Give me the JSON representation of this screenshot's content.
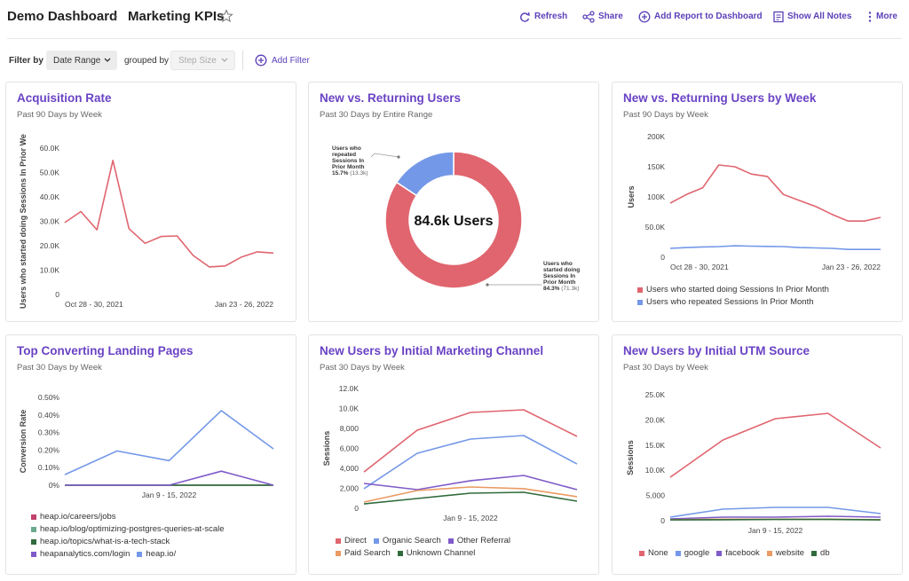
{
  "header": {
    "breadcrumb": "Demo Dashboard",
    "title": "Marketing KPIs",
    "actions": [
      "Refresh",
      "Share",
      "Add Report to Dashboard",
      "Show All Notes",
      "More"
    ]
  },
  "filters": {
    "filter_label": "Filter by",
    "filter_value": "Date Range",
    "group_label": "grouped by",
    "group_value": "Step Size",
    "add": "Add Filter"
  },
  "chart_data": [
    {
      "type": "line",
      "title": "Acquisition Rate",
      "subtitle": "Past 90 Days by Week",
      "y_label": "Users who started doing Sessions In Prior We",
      "color": "#e0656f",
      "categories": [
        "Oct 28 - 30, 2021",
        null,
        null,
        null,
        null,
        null,
        null,
        null,
        null,
        null,
        null,
        null,
        null,
        "Jan 23 - 26, 2022"
      ],
      "values": [
        29500,
        34000,
        26500,
        55000,
        27000,
        21000,
        23800,
        24000,
        16000,
        11300,
        11700,
        15300,
        17500,
        17000
      ],
      "ylim": [
        0,
        60000
      ],
      "yticks": [
        0,
        {
          "value": 10000,
          "label": "10.0K"
        },
        {
          "value": 20000,
          "label": "20.0K"
        },
        {
          "value": 30000,
          "label": "30.0K"
        },
        {
          "value": 40000,
          "label": "40.0K"
        },
        {
          "value": 50000,
          "label": "50.0K"
        },
        {
          "value": 60000,
          "label": "60.0K"
        }
      ],
      "grid": false
    },
    {
      "type": "donut",
      "title": "New vs. Returning Users",
      "subtitle": "Past 30 Days by Entire Range",
      "center_label": "84.6k Users",
      "categories": [
        "Users who started doing Sessions In Prior Month",
        "Users who repeated Sessions In Prior Month"
      ],
      "values": [
        84.3,
        15.7
      ],
      "value_labels": [
        "84.3%",
        "15.7%"
      ],
      "count_labels": [
        "(71.3k)",
        "(13.3k)"
      ],
      "colors": [
        "#e0656f",
        "#7498e8"
      ]
    },
    {
      "type": "line",
      "title": "New vs. Returning Users by Week",
      "subtitle": "Past 90 Days by Week",
      "y_label": "Users",
      "categories": [
        "Oct 28 - 30, 2021",
        null,
        null,
        null,
        null,
        null,
        null,
        null,
        null,
        null,
        null,
        null,
        null,
        "Jan 23 - 26, 2022"
      ],
      "series": [
        {
          "name": "Users who started doing Sessions In Prior Month",
          "color": "#e0656f",
          "values": [
            89700,
            104000,
            115000,
            153000,
            150000,
            138000,
            134000,
            104000,
            94000,
            84000,
            71000,
            60000,
            60000,
            66000
          ]
        },
        {
          "name": "Users who repeated Sessions In Prior Month",
          "color": "#7498e8",
          "values": [
            14700,
            16000,
            17000,
            17600,
            19000,
            18400,
            18000,
            17600,
            16000,
            15500,
            14700,
            13000,
            13000,
            13000
          ]
        }
      ],
      "ylim": [
        0,
        200000
      ],
      "yticks": [
        0,
        {
          "value": 50000,
          "label": "50.0K"
        },
        {
          "value": 100000,
          "label": "100K"
        },
        {
          "value": 150000,
          "label": "150K"
        },
        {
          "value": 200000,
          "label": "200K"
        }
      ],
      "grid": false
    },
    {
      "type": "line",
      "title": "Top Converting Landing Pages",
      "subtitle": "Past 30 Days by Week",
      "y_label": "Conversion Rate",
      "categories": [
        null,
        null,
        "Jan 9 - 15, 2022",
        null,
        null
      ],
      "series": [
        {
          "name": "heap.io/careers/jobs",
          "color": "#c3436d",
          "values": [
            0,
            0,
            0,
            0,
            0
          ]
        },
        {
          "name": "heap.io/blog/optimizing-postgres-queries-at-scale",
          "color": "#6aaa8c",
          "values": [
            0,
            0,
            0,
            0,
            0
          ]
        },
        {
          "name": "heap.io/topics/what-is-a-tech-stack",
          "color": "#2f6b3b",
          "values": [
            0,
            0,
            0,
            0,
            0
          ]
        },
        {
          "name": "heapanalytics.com/login",
          "color": "#7f5bc9",
          "values": [
            0,
            0,
            0,
            0.08,
            0
          ]
        },
        {
          "name": "heap.io/",
          "color": "#7498e8",
          "values": [
            0.06,
            0.195,
            0.14,
            0.425,
            0.207
          ]
        }
      ],
      "ylim": [
        0,
        0.5
      ],
      "yticks": [
        {
          "value": 0,
          "label": "0%"
        },
        {
          "value": 0.1,
          "label": "0.10%"
        },
        {
          "value": 0.2,
          "label": "0.20%"
        },
        {
          "value": 0.3,
          "label": "0.30%"
        },
        {
          "value": 0.4,
          "label": "0.40%"
        },
        {
          "value": 0.5,
          "label": "0.50%"
        }
      ],
      "grid": false
    },
    {
      "type": "line",
      "title": "New Users by Initial Marketing Channel",
      "subtitle": "Past 30 Days by Week",
      "y_label": "Sessions",
      "categories": [
        null,
        null,
        "Jan 9 - 15, 2022",
        null,
        null
      ],
      "series": [
        {
          "name": "Direct",
          "color": "#e0656f",
          "values": [
            3640,
            7820,
            9600,
            9870,
            7200
          ]
        },
        {
          "name": "Organic Search",
          "color": "#7498e8",
          "values": [
            1960,
            5510,
            6930,
            7290,
            4440
          ]
        },
        {
          "name": "Other Referral",
          "color": "#7f5bc9",
          "values": [
            2490,
            1870,
            2760,
            3290,
            1870
          ]
        },
        {
          "name": "Paid Search",
          "color": "#ea9a62",
          "values": [
            620,
            1780,
            2130,
            1960,
            1160
          ]
        },
        {
          "name": "Unknown Channel",
          "color": "#2f6b3b",
          "values": [
            440,
            980,
            1510,
            1600,
            710
          ]
        }
      ],
      "ylim": [
        0,
        12000
      ],
      "yticks": [
        0,
        {
          "value": 2000,
          "label": "2,000"
        },
        {
          "value": 4000,
          "label": "4,000"
        },
        {
          "value": 6000,
          "label": "6,000"
        },
        {
          "value": 8000,
          "label": "8,000"
        },
        {
          "value": 10000,
          "label": "10.0K"
        },
        {
          "value": 12000,
          "label": "12.0K"
        }
      ],
      "grid": false
    },
    {
      "type": "line",
      "title": "New Users by Initial UTM Source",
      "subtitle": "Past 30 Days by Week",
      "y_label": "Sessions",
      "categories": [
        null,
        null,
        "Jan 9 - 15, 2022",
        null,
        null
      ],
      "series": [
        {
          "name": "None",
          "color": "#e0656f",
          "values": [
            8630,
            16000,
            20250,
            21300,
            14440
          ]
        },
        {
          "name": "google",
          "color": "#7498e8",
          "values": [
            700,
            2290,
            2640,
            2640,
            1400
          ]
        },
        {
          "name": "facebook",
          "color": "#7f5bc9",
          "values": [
            350,
            700,
            700,
            880,
            700
          ]
        },
        {
          "name": "website",
          "color": "#ea9a62",
          "values": [
            200,
            300,
            300,
            300,
            200
          ]
        },
        {
          "name": "db",
          "color": "#2f6b3b",
          "values": [
            150,
            200,
            250,
            250,
            150
          ]
        }
      ],
      "ylim": [
        0,
        25000
      ],
      "yticks": [
        0,
        {
          "value": 5000,
          "label": "5,000"
        },
        {
          "value": 10000,
          "label": "10.0K"
        },
        {
          "value": 15000,
          "label": "15.0K"
        },
        {
          "value": 20000,
          "label": "20.0K"
        },
        {
          "value": 25000,
          "label": "25.0K"
        }
      ],
      "grid": false
    }
  ]
}
